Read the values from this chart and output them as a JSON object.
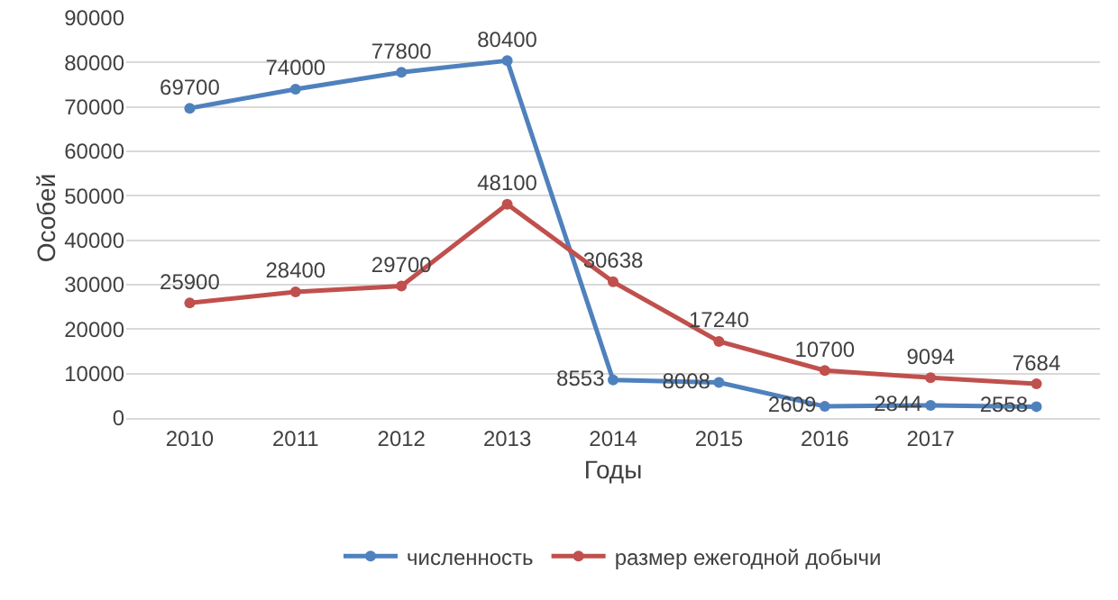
{
  "chart_data": {
    "type": "line",
    "xlabel": "Годы",
    "ylabel": "Особей",
    "categories": [
      "2010",
      "2011",
      "2012",
      "2013",
      "2014",
      "2015",
      "2016",
      "2017",
      null
    ],
    "series": [
      {
        "name": "численность",
        "color": "#4f81bd",
        "values": [
          69700,
          74000,
          77800,
          80400,
          8553,
          8008,
          2609,
          2844,
          2558
        ]
      },
      {
        "name": "размер ежегодной добычи",
        "color": "#c0504d",
        "values": [
          25900,
          28400,
          29700,
          48100,
          30638,
          17240,
          10700,
          9094,
          7684
        ]
      }
    ],
    "ylim": [
      0,
      90000
    ],
    "yticks": [
      0,
      10000,
      20000,
      30000,
      40000,
      50000,
      60000,
      70000,
      80000,
      90000
    ],
    "grid": "y",
    "legend": "bottom",
    "marker": "circle",
    "line_style": "solid",
    "data_labels": true
  }
}
